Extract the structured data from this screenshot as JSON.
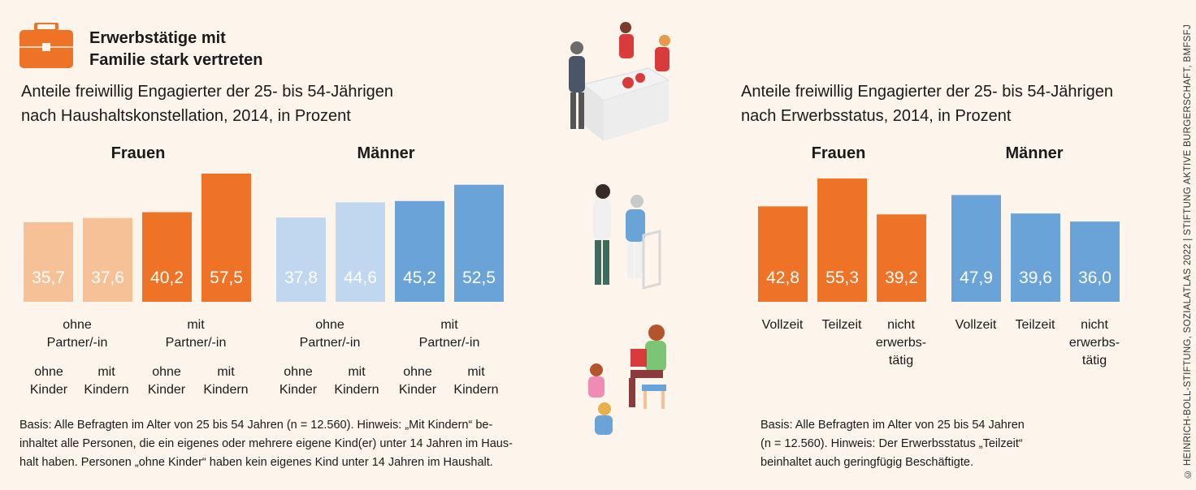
{
  "header": {
    "title_line1": "Erwerbstätige mit",
    "title_line2": "Familie stark vertreten",
    "icon": "briefcase-icon"
  },
  "left": {
    "subtitle_line1": "Anteile freiwillig Engagierter der 25- bis 54-Jährigen",
    "subtitle_line2": "nach Haushaltskonstellation, 2014, in Prozent",
    "group_women": "Frauen",
    "group_men": "Männer",
    "partner_none_line1": "ohne",
    "partner_none_line2": "Partner/-in",
    "partner_with_line1": "mit",
    "partner_with_line2": "Partner/-in",
    "kids_none_line1": "ohne",
    "kids_none_line2": "Kinder",
    "kids_with_line1": "mit",
    "kids_with_line2": "Kindern",
    "note_line1": "Basis: Alle Befragten im Alter von 25 bis 54 Jahren (n = 12.560). Hinweis: „Mit Kindern“ be-",
    "note_line2": "inhaltet alle Personen, die ein eigenes oder mehrere eigene Kind(er) unter 14 Jahren im Haus-",
    "note_line3": "halt haben. Personen „ohne Kinder“ haben kein eigenes Kind unter 14 Jahren im Haushalt."
  },
  "right": {
    "subtitle_line1": "Anteile freiwillig Engagierter der 25- bis 54-Jährigen",
    "subtitle_line2": "nach Erwerbsstatus, 2014, in Prozent",
    "group_women": "Frauen",
    "group_men": "Männer",
    "cat_full": "Vollzeit",
    "cat_part": "Teilzeit",
    "cat_none_line1": "nicht",
    "cat_none_line2": "erwerbs-",
    "cat_none_line3": "tätig",
    "note_line1": "Basis: Alle Befragten im Alter von 25 bis 54 Jahren",
    "note_line2": "(n = 12.560). Hinweis: Der Erwerbsstatus „Teilzeit“",
    "note_line3": "beinhaltet auch geringfügig Beschäftigte."
  },
  "source": "© HEINRICH-BÖLL-STIFTUNG, SOZIALATLAS 2022 | STIFTUNG AKTIVE BÜRGERSCHAFT, BMFSFJ",
  "colors": {
    "orange": "#ee7326",
    "orange_light": "#f7c198",
    "blue": "#6aa3d8",
    "blue_light": "#c1d6ef",
    "background": "#fdf4ec"
  },
  "chart_data": [
    {
      "type": "bar",
      "categories": [
        "ohne Partner/-in, ohne Kinder",
        "ohne Partner/-in, mit Kindern",
        "mit Partner/-in, ohne Kinder",
        "mit Partner/-in, mit Kindern"
      ],
      "series": [
        {
          "name": "Frauen",
          "values": [
            35.7,
            37.6,
            40.2,
            57.5
          ],
          "labels": [
            "35,7",
            "37,6",
            "40,2",
            "57,5"
          ]
        },
        {
          "name": "Männer",
          "values": [
            37.8,
            44.6,
            45.2,
            52.5
          ],
          "labels": [
            "37,8",
            "44,6",
            "45,2",
            "52,5"
          ]
        }
      ],
      "ylim": [
        0,
        60
      ]
    },
    {
      "type": "bar",
      "categories": [
        "Vollzeit",
        "Teilzeit",
        "nicht erwerbstätig"
      ],
      "series": [
        {
          "name": "Frauen",
          "values": [
            42.8,
            55.3,
            39.2
          ],
          "labels": [
            "42,8",
            "55,3",
            "39,2"
          ]
        },
        {
          "name": "Männer",
          "values": [
            47.9,
            39.6,
            36.0
          ],
          "labels": [
            "47,9",
            "39,6",
            "36,0"
          ]
        }
      ],
      "ylim": [
        0,
        60
      ]
    }
  ]
}
